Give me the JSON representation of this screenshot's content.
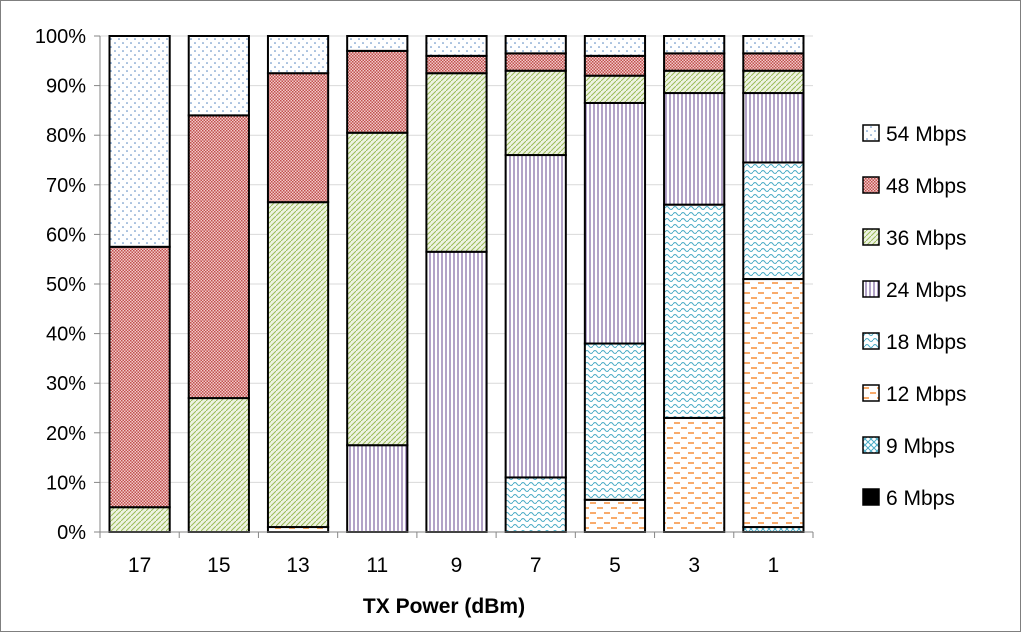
{
  "chart_data": {
    "type": "bar",
    "stacked": true,
    "percent": true,
    "title": "",
    "xlabel": "TX Power (dBm)",
    "ylabel": "",
    "ylim": [
      0,
      100
    ],
    "yticks": [
      "0%",
      "10%",
      "20%",
      "30%",
      "40%",
      "50%",
      "60%",
      "70%",
      "80%",
      "90%",
      "100%"
    ],
    "categories": [
      "17",
      "15",
      "13",
      "11",
      "9",
      "7",
      "5",
      "3",
      "1"
    ],
    "legend_position": "right",
    "series": [
      {
        "name": "6 Mbps",
        "color": "#000000",
        "pattern": "solid",
        "values": [
          0,
          0,
          0,
          0,
          0,
          0,
          0,
          0,
          0
        ]
      },
      {
        "name": "9 Mbps",
        "color": "#4bacc6",
        "pattern": "crosshatch",
        "values": [
          0,
          0,
          0,
          0,
          0,
          0,
          0,
          0,
          1
        ]
      },
      {
        "name": "12 Mbps",
        "color": "#f79646",
        "pattern": "dashes",
        "values": [
          0,
          0,
          1,
          0,
          0,
          0,
          6.5,
          23,
          50
        ]
      },
      {
        "name": "18 Mbps",
        "color": "#4bacc6",
        "pattern": "waves",
        "values": [
          0,
          0,
          0,
          0,
          0,
          11,
          31.5,
          43,
          23.5
        ]
      },
      {
        "name": "24 Mbps",
        "color": "#8064a2",
        "pattern": "vertical",
        "values": [
          0,
          0,
          0,
          17.5,
          56.5,
          65,
          48.5,
          22.5,
          14
        ]
      },
      {
        "name": "36 Mbps",
        "color": "#9bbb59",
        "pattern": "diagonal",
        "values": [
          5,
          27,
          65.5,
          63,
          36,
          17,
          5.5,
          4.5,
          4.5
        ]
      },
      {
        "name": "48 Mbps",
        "color": "#c0504d",
        "pattern": "dense",
        "values": [
          52.5,
          57,
          26,
          16.5,
          3.5,
          3.5,
          4,
          3.5,
          3.5
        ]
      },
      {
        "name": "54 Mbps",
        "color": "#4f81bd",
        "pattern": "dots",
        "values": [
          42.5,
          16,
          7.5,
          3,
          4,
          3.5,
          4,
          3.5,
          3.5
        ]
      }
    ]
  }
}
